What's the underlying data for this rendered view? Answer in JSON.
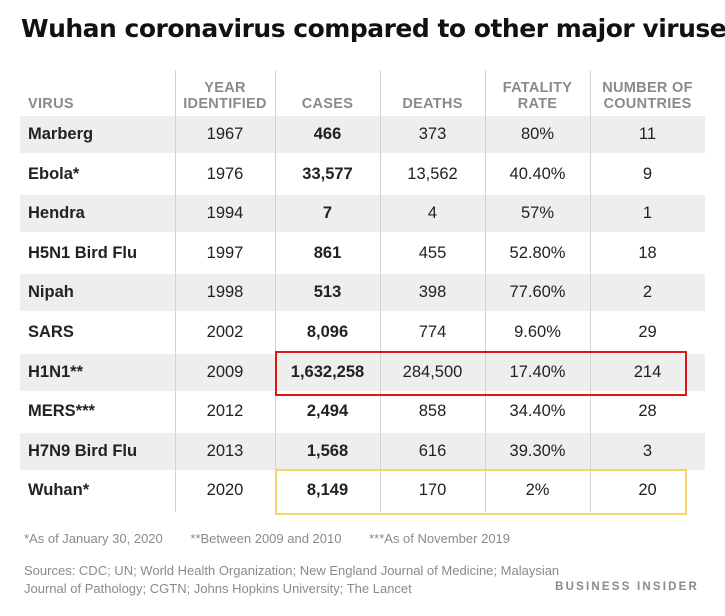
{
  "title": "Wuhan coronavirus compared to other major viruses",
  "chart_data": {
    "type": "table",
    "columns": [
      "VIRUS",
      "YEAR\nIDENTIFIED",
      "CASES",
      "DEATHS",
      "FATALITY\nRATE",
      "NUMBER OF\nCOUNTRIES"
    ],
    "rows": [
      [
        "Marberg",
        "1967",
        "466",
        "373",
        "80%",
        "11"
      ],
      [
        "Ebola*",
        "1976",
        "33,577",
        "13,562",
        "40.40%",
        "9"
      ],
      [
        "Hendra",
        "1994",
        "7",
        "4",
        "57%",
        "1"
      ],
      [
        "H5N1 Bird Flu",
        "1997",
        "861",
        "455",
        "52.80%",
        "18"
      ],
      [
        "Nipah",
        "1998",
        "513",
        "398",
        "77.60%",
        "2"
      ],
      [
        "SARS",
        "2002",
        "8,096",
        "774",
        "9.60%",
        "29"
      ],
      [
        "H1N1**",
        "2009",
        "1,632,258",
        "284,500",
        "17.40%",
        "214"
      ],
      [
        "MERS***",
        "2012",
        "2,494",
        "858",
        "34.40%",
        "28"
      ],
      [
        "H7N9 Bird Flu",
        "2013",
        "1,568",
        "616",
        "39.30%",
        "3"
      ],
      [
        "Wuhan*",
        "2020",
        "8,149",
        "170",
        "2%",
        "20"
      ]
    ],
    "highlight_colors": {
      "red": "#e0151b",
      "yellow": "#f7d36c"
    }
  },
  "footnotes": [
    "*As of January 30, 2020",
    "**Between 2009 and 2010",
    "***As of November 2019"
  ],
  "sources": "Sources: CDC; UN; World Health Organization; New England Journal of Medicine; Malaysian Journal of Pathology; CGTN; Johns Hopkins University; The Lancet",
  "brand": "BUSINESS INSIDER"
}
